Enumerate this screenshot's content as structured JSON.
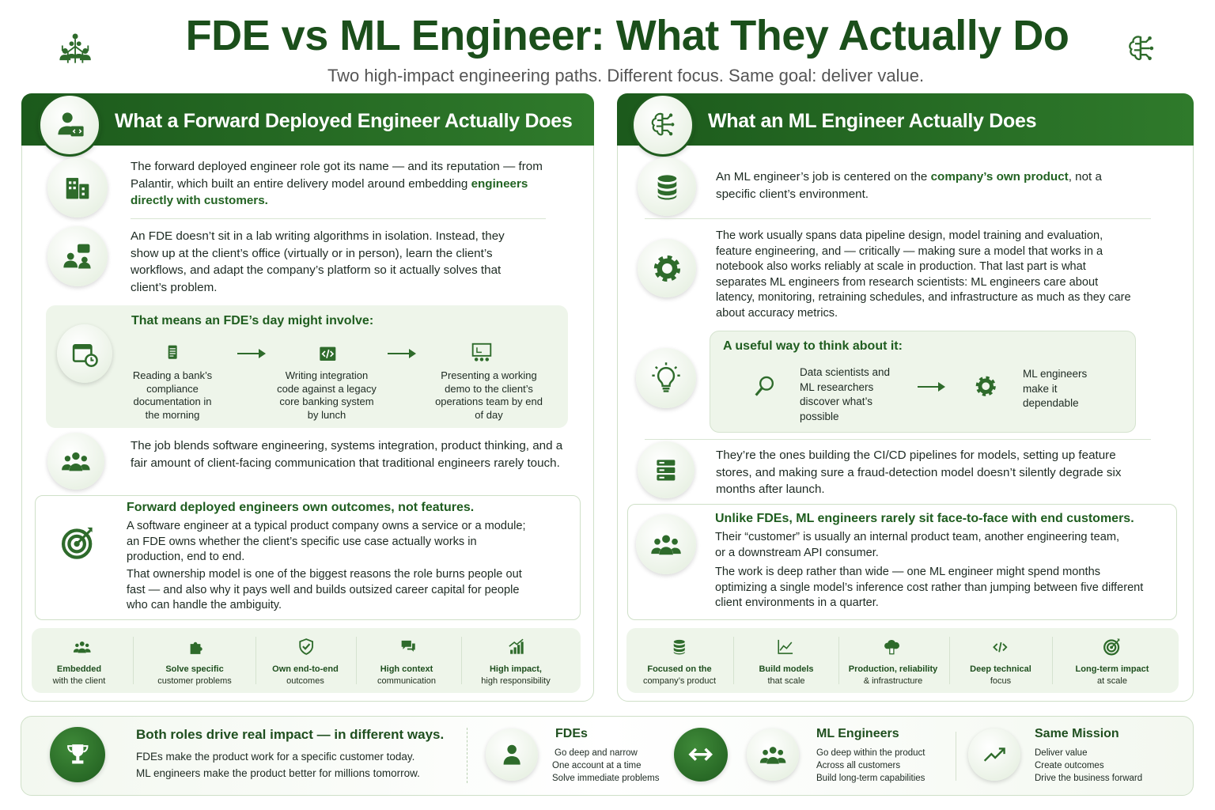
{
  "header": {
    "title": "FDE vs ML Engineer: What They Actually Do",
    "subtitle": "Two high-impact engineering paths. Different focus. Same goal: deliver value."
  },
  "fde": {
    "title": "What a Forward Deployed Engineer Actually Does",
    "intro": [
      "The forward deployed engineer role got its name — and its reputation — from Palantir, which built an entire delivery model around embedding ",
      "engineers directly with customers."
    ],
    "role": "An FDE doesn’t sit in a lab writing algorithms in isolation. Instead, they show up at the client’s office (virtually or in person), learn the client’s workflows, and adapt the company’s platform so it actually solves that client’s problem.",
    "day": {
      "heading": "That means an FDE’s day might involve:",
      "steps": [
        "Reading a bank’s compliance documentation in the morning",
        "Writing integration code against a legacy core banking system by lunch",
        "Presenting a working demo to the client’s operations team by end of day"
      ]
    },
    "blend": "The job blends software engineering, systems integration, product thinking, and a fair amount of client-facing communication that traditional engineers rarely touch.",
    "ownership": {
      "heading": "Forward deployed engineers own outcomes, not features.",
      "paragraphs": [
        "A software engineer at a typical product company owns a service or a module; an FDE owns whether the client’s specific use case actually works in production, end to end.",
        "That ownership model is one of the biggest reasons the role burns people out fast — and also why it pays well and builds outsized career capital for people who can handle the ambiguity."
      ]
    },
    "features": [
      [
        "Embedded",
        "with the client"
      ],
      [
        "Solve specific",
        "customer problems"
      ],
      [
        "Own end-to-end",
        "outcomes"
      ],
      [
        "High context",
        "communication"
      ],
      [
        "High impact,",
        "high responsibility"
      ]
    ]
  },
  "ml": {
    "title": "What an ML Engineer Actually Does",
    "intro": [
      "An ML engineer’s job is centered on the ",
      "company’s own product",
      ", not a specific client’s environment."
    ],
    "work": "The work usually spans data pipeline design, model training and evaluation, feature engineering, and — critically — making sure a model that works in a notebook also works reliably at scale in production. That last part is what separates ML engineers from research scientists: ML engineers care about latency, monitoring, retraining schedules, and infrastructure as much as they care about accuracy metrics.",
    "think": {
      "heading": "A useful way to think about it:",
      "left": "Data scientists and ML researchers discover what’s possible",
      "right": "ML engineers make it dependable"
    },
    "pipelines": "They’re the ones building the CI/CD pipelines for models, setting up feature stores, and making sure a fraud-detection model doesn’t silently degrade six months after launch.",
    "unlike": {
      "heading": "Unlike FDEs, ML engineers rarely sit face-to-face with end customers.",
      "paragraphs": [
        "Their “customer” is usually an internal product team, another engineering team, or a downstream API consumer.",
        "The work is deep rather than wide — one ML engineer might spend months optimizing a single model’s inference cost rather than jumping between five different client environments in a quarter."
      ]
    },
    "features": [
      [
        "Focused on the",
        "company’s product"
      ],
      [
        "Build models",
        "that scale"
      ],
      [
        "Production, reliability",
        "& infrastructure"
      ],
      [
        "Deep technical",
        "focus"
      ],
      [
        "Long-term impact",
        "at scale"
      ]
    ]
  },
  "footer": {
    "heading": "Both roles drive real impact — in different ways.",
    "lines": [
      "FDEs make the product work for a specific customer today.",
      "ML engineers make the product better for millions tomorrow."
    ],
    "fdes": {
      "heading": "FDEs",
      "lines": [
        "Go deep and narrow",
        "One account at a time",
        "Solve immediate problems"
      ]
    },
    "mles": {
      "heading": "ML Engineers",
      "lines": [
        "Go deep within the product",
        "Across all customers",
        "Build long-term capabilities"
      ]
    },
    "mission": {
      "heading": "Same Mission",
      "lines": [
        "Deliver value",
        "Create outcomes",
        "Drive the business forward"
      ]
    }
  }
}
